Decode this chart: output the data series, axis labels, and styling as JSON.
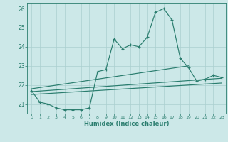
{
  "xlabel": "Humidex (Indice chaleur)",
  "x_values": [
    0,
    1,
    2,
    3,
    4,
    5,
    6,
    7,
    8,
    9,
    10,
    11,
    12,
    13,
    14,
    15,
    16,
    17,
    18,
    19,
    20,
    21,
    22,
    23
  ],
  "main_line": [
    21.7,
    21.1,
    21.0,
    20.8,
    20.7,
    20.7,
    20.7,
    20.8,
    22.7,
    22.8,
    24.4,
    23.9,
    24.1,
    24.0,
    24.5,
    25.8,
    26.0,
    25.4,
    23.4,
    22.9,
    22.2,
    22.3,
    22.5,
    22.4
  ],
  "lower_line_x": [
    0,
    23
  ],
  "lower_line_y": [
    21.5,
    22.1
  ],
  "mid_line_x": [
    0,
    23
  ],
  "mid_line_y": [
    21.65,
    22.35
  ],
  "upper_line_x": [
    0,
    19
  ],
  "upper_line_y": [
    21.8,
    23.0
  ],
  "line_color": "#2a7d6e",
  "bg_color": "#cce8e8",
  "grid_color": "#aacfcf",
  "ylim": [
    20.5,
    26.3
  ],
  "xlim": [
    -0.5,
    23.5
  ],
  "yticks": [
    21,
    22,
    23,
    24,
    25,
    26
  ],
  "ytick_labels": [
    "21",
    "22",
    "23",
    "24",
    "25",
    "26"
  ]
}
